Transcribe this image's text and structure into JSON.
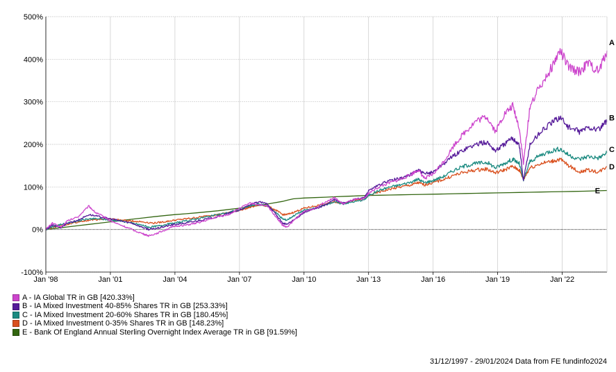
{
  "chart_data": {
    "type": "line",
    "y_tick_labels": [
      "500%",
      "400%",
      "300%",
      "200%",
      "100%",
      "0%",
      "-100%"
    ],
    "y_ticks": [
      500,
      400,
      300,
      200,
      100,
      0,
      -100
    ],
    "ylim": [
      -100,
      500
    ],
    "x_tick_labels": [
      "Jan '98",
      "Jan '01",
      "Jan '04",
      "Jan '07",
      "Jan '10",
      "Jan '13",
      "Jan '16",
      "Jan '19",
      "Jan '22"
    ],
    "x_ticks": [
      1998,
      2001,
      2004,
      2007,
      2010,
      2013,
      2016,
      2019,
      2022
    ],
    "xlim": [
      1998.0,
      2024.08
    ],
    "grid": true,
    "legend_position": "bottom-left",
    "series": [
      {
        "label": "A",
        "name": "A - IA Global TR in GB [420.33%]",
        "color": "#cc44cc",
        "x": [
          1998.0,
          1998.3,
          1998.7,
          1999.0,
          1999.5,
          2000.0,
          2000.3,
          2000.7,
          2001.0,
          2001.5,
          2002.0,
          2002.5,
          2002.8,
          2003.2,
          2003.6,
          2004.0,
          2004.5,
          2005.0,
          2005.5,
          2006.0,
          2006.5,
          2007.0,
          2007.5,
          2007.9,
          2008.3,
          2008.7,
          2009.0,
          2009.2,
          2009.6,
          2010.0,
          2010.5,
          2011.0,
          2011.4,
          2011.8,
          2012.3,
          2012.8,
          2013.0,
          2013.5,
          2014.0,
          2014.5,
          2015.0,
          2015.3,
          2015.6,
          2016.0,
          2016.5,
          2017.0,
          2017.5,
          2018.0,
          2018.5,
          2018.9,
          2019.3,
          2019.7,
          2020.0,
          2020.2,
          2020.5,
          2021.0,
          2021.5,
          2021.9,
          2022.3,
          2022.8,
          2023.2,
          2023.7,
          2024.08
        ],
        "y": [
          0,
          15,
          5,
          20,
          30,
          55,
          40,
          30,
          20,
          10,
          0,
          -10,
          -15,
          -8,
          0,
          8,
          10,
          15,
          22,
          30,
          35,
          50,
          62,
          58,
          55,
          30,
          10,
          5,
          25,
          42,
          50,
          65,
          75,
          60,
          70,
          72,
          85,
          100,
          110,
          118,
          130,
          140,
          120,
          130,
          160,
          200,
          230,
          255,
          265,
          230,
          270,
          290,
          240,
          155,
          290,
          340,
          380,
          420,
          380,
          370,
          390,
          370,
          420.33
        ]
      },
      {
        "label": "B",
        "name": "B - IA Mixed Investment 40-85% Shares TR in GB [253.33%]",
        "color": "#551a99",
        "x": [
          1998.0,
          1998.3,
          1998.7,
          1999.0,
          1999.5,
          2000.0,
          2000.5,
          2001.0,
          2001.5,
          2002.0,
          2002.5,
          2002.8,
          2003.2,
          2003.6,
          2004.0,
          2004.5,
          2005.0,
          2005.5,
          2006.0,
          2006.5,
          2007.0,
          2007.5,
          2007.9,
          2008.3,
          2008.7,
          2009.0,
          2009.2,
          2009.6,
          2010.0,
          2010.5,
          2011.0,
          2011.4,
          2011.8,
          2012.3,
          2012.8,
          2013.0,
          2013.5,
          2014.0,
          2014.5,
          2015.0,
          2015.3,
          2015.6,
          2016.0,
          2016.5,
          2017.0,
          2017.5,
          2018.0,
          2018.5,
          2018.9,
          2019.3,
          2019.7,
          2020.0,
          2020.2,
          2020.5,
          2021.0,
          2021.5,
          2021.9,
          2022.3,
          2022.8,
          2023.2,
          2023.7,
          2024.08
        ],
        "y": [
          0,
          10,
          5,
          15,
          22,
          35,
          30,
          25,
          20,
          15,
          5,
          0,
          3,
          8,
          12,
          15,
          20,
          25,
          30,
          38,
          45,
          58,
          65,
          60,
          35,
          15,
          12,
          25,
          40,
          48,
          58,
          70,
          62,
          70,
          75,
          90,
          105,
          115,
          120,
          130,
          140,
          130,
          135,
          155,
          175,
          190,
          200,
          205,
          185,
          200,
          215,
          200,
          115,
          200,
          230,
          250,
          265,
          240,
          230,
          240,
          235,
          253.33
        ]
      },
      {
        "label": "C",
        "name": "C - IA Mixed Investment 20-60% Shares TR in GB [180.45%]",
        "color": "#1b8a80",
        "x": [
          1998.0,
          1998.5,
          1999.0,
          1999.5,
          2000.0,
          2000.5,
          2001.0,
          2001.5,
          2002.0,
          2002.5,
          2002.8,
          2003.2,
          2003.6,
          2004.0,
          2004.5,
          2005.0,
          2005.5,
          2006.0,
          2006.5,
          2007.0,
          2007.5,
          2007.9,
          2008.3,
          2008.7,
          2009.0,
          2009.2,
          2009.6,
          2010.0,
          2010.5,
          2011.0,
          2011.4,
          2011.8,
          2012.3,
          2012.8,
          2013.0,
          2013.5,
          2014.0,
          2014.5,
          2015.0,
          2015.3,
          2015.6,
          2016.0,
          2016.5,
          2017.0,
          2017.5,
          2018.0,
          2018.5,
          2018.9,
          2019.3,
          2019.7,
          2020.0,
          2020.2,
          2020.5,
          2021.0,
          2021.5,
          2021.9,
          2022.3,
          2022.8,
          2023.2,
          2023.7,
          2024.08
        ],
        "y": [
          0,
          10,
          15,
          20,
          25,
          25,
          22,
          20,
          15,
          10,
          5,
          8,
          12,
          15,
          20,
          25,
          30,
          35,
          40,
          48,
          55,
          60,
          55,
          40,
          25,
          22,
          35,
          45,
          50,
          58,
          65,
          60,
          65,
          70,
          80,
          92,
          100,
          105,
          112,
          118,
          110,
          115,
          125,
          140,
          150,
          155,
          158,
          145,
          155,
          165,
          155,
          115,
          160,
          175,
          185,
          190,
          175,
          165,
          172,
          168,
          180.45
        ]
      },
      {
        "label": "D",
        "name": "D - IA Mixed Investment 0-35% Shares TR in GB [148.23%]",
        "color": "#d9501e",
        "x": [
          1998.0,
          1998.5,
          1999.0,
          1999.5,
          2000.0,
          2000.5,
          2001.0,
          2001.5,
          2002.0,
          2002.5,
          2003.0,
          2003.5,
          2004.0,
          2004.5,
          2005.0,
          2005.5,
          2006.0,
          2006.5,
          2007.0,
          2007.5,
          2007.9,
          2008.3,
          2008.7,
          2009.0,
          2009.2,
          2009.6,
          2010.0,
          2010.5,
          2011.0,
          2011.4,
          2011.8,
          2012.3,
          2012.8,
          2013.0,
          2013.5,
          2014.0,
          2014.5,
          2015.0,
          2015.3,
          2015.6,
          2016.0,
          2016.5,
          2017.0,
          2017.5,
          2018.0,
          2018.5,
          2018.9,
          2019.3,
          2019.7,
          2020.0,
          2020.2,
          2020.5,
          2021.0,
          2021.5,
          2021.9,
          2022.3,
          2022.8,
          2023.2,
          2023.7,
          2024.08
        ],
        "y": [
          0,
          8,
          12,
          18,
          22,
          24,
          25,
          22,
          20,
          18,
          15,
          18,
          22,
          25,
          28,
          32,
          35,
          40,
          45,
          52,
          58,
          55,
          45,
          35,
          35,
          42,
          50,
          55,
          60,
          65,
          62,
          68,
          72,
          80,
          88,
          95,
          100,
          105,
          110,
          105,
          110,
          118,
          128,
          135,
          140,
          142,
          133,
          140,
          148,
          140,
          118,
          145,
          155,
          160,
          165,
          150,
          135,
          140,
          135,
          148.23
        ]
      },
      {
        "label": "E",
        "name": "E - Bank Of England Annual Sterling Overnight Index Average TR in GB [91.59%]",
        "color": "#336611",
        "x": [
          1998.0,
          1999.0,
          2000.0,
          2001.0,
          2002.0,
          2003.0,
          2004.0,
          2005.0,
          2006.0,
          2007.0,
          2008.0,
          2009.0,
          2009.5,
          2010.0,
          2011.0,
          2012.0,
          2013.0,
          2014.0,
          2015.0,
          2016.0,
          2017.0,
          2018.0,
          2019.0,
          2020.0,
          2021.0,
          2022.0,
          2023.0,
          2024.08
        ],
        "y": [
          0,
          6,
          12,
          18,
          24,
          30,
          35,
          39,
          44,
          50,
          57,
          66,
          72,
          74,
          76,
          78,
          80,
          81,
          82,
          83,
          84,
          85,
          86,
          87,
          88,
          89,
          90,
          91.59
        ]
      }
    ]
  },
  "legend_entries": [
    "A - IA Global TR in GB [420.33%]",
    "B - IA Mixed Investment 40-85% Shares TR in GB [253.33%]",
    "C - IA Mixed Investment 20-60% Shares TR in GB [180.45%]",
    "D - IA Mixed Investment 0-35% Shares TR in GB [148.23%]",
    "E - Bank Of England Annual Sterling Overnight Index Average TR in GB [91.59%]"
  ],
  "footer": "31/12/1997 - 29/01/2024 Data from FE fundinfo2024"
}
